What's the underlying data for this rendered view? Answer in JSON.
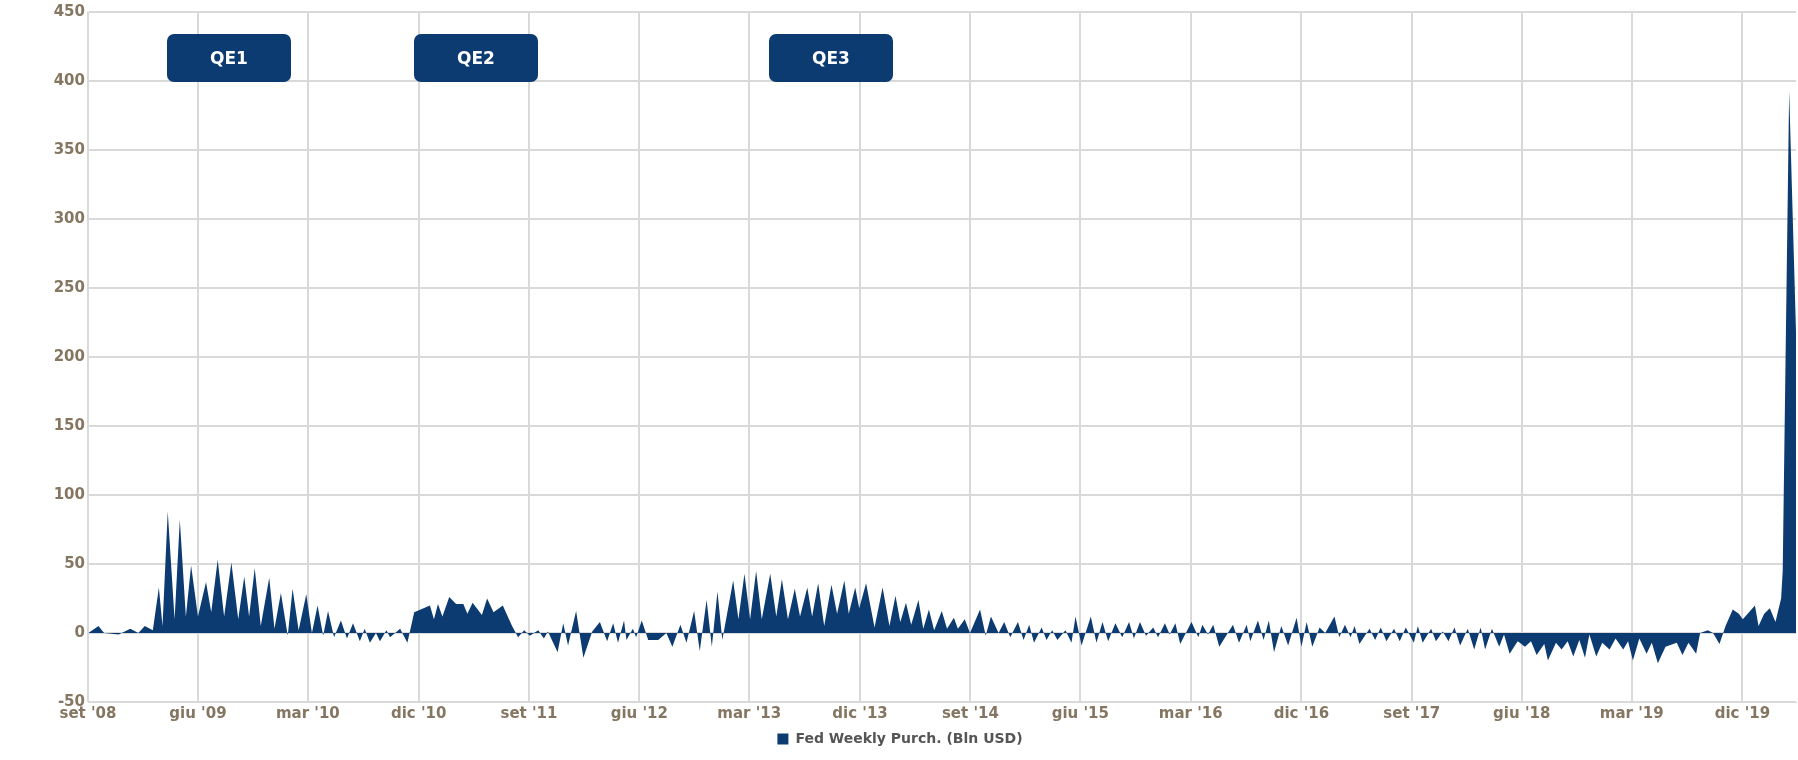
{
  "chart_data": {
    "type": "area",
    "x": [
      "2008-09-02",
      "2008-09-27",
      "2008-10-11",
      "2008-11-16",
      "2008-12-15",
      "2009-01-04",
      "2009-01-20",
      "2009-02-09",
      "2009-02-24",
      "2009-03-05",
      "2009-03-18",
      "2009-04-04",
      "2009-04-17",
      "2009-05-02",
      "2009-05-15",
      "2009-06-01",
      "2009-06-21",
      "2009-07-04",
      "2009-07-20",
      "2009-08-05",
      "2009-08-23",
      "2009-09-09",
      "2009-09-24",
      "2009-10-06",
      "2009-10-20",
      "2009-11-04",
      "2009-11-25",
      "2009-12-08",
      "2009-12-24",
      "2010-01-10",
      "2010-01-22",
      "2010-02-06",
      "2010-02-25",
      "2010-03-11",
      "2010-03-25",
      "2010-04-08",
      "2010-04-20",
      "2010-05-05",
      "2010-05-22",
      "2010-06-06",
      "2010-06-21",
      "2010-07-08",
      "2010-07-20",
      "2010-08-02",
      "2010-08-17",
      "2010-08-27",
      "2010-09-12",
      "2010-09-21",
      "2010-10-16",
      "2010-11-03",
      "2010-11-20",
      "2010-12-29",
      "2011-01-08",
      "2011-01-18",
      "2011-01-29",
      "2011-02-15",
      "2011-03-04",
      "2011-03-22",
      "2011-04-01",
      "2011-04-14",
      "2011-05-07",
      "2011-05-20",
      "2011-06-05",
      "2011-06-28",
      "2011-07-21",
      "2011-08-05",
      "2011-08-20",
      "2011-09-03",
      "2011-09-24",
      "2011-10-08",
      "2011-10-18",
      "2011-11-11",
      "2011-11-25",
      "2011-12-07",
      "2011-12-27",
      "2012-01-14",
      "2012-02-05",
      "2012-02-24",
      "2012-03-13",
      "2012-03-28",
      "2012-04-09",
      "2012-04-24",
      "2012-04-30",
      "2012-05-16",
      "2012-05-24",
      "2012-06-07",
      "2012-06-23",
      "2012-07-18",
      "2012-08-07",
      "2012-08-22",
      "2012-09-11",
      "2012-09-26",
      "2012-10-15",
      "2012-10-29",
      "2012-11-15",
      "2012-11-28",
      "2012-12-12",
      "2012-12-24",
      "2013-01-20",
      "2013-02-02",
      "2013-02-17",
      "2013-03-03",
      "2013-03-18",
      "2013-04-01",
      "2013-04-22",
      "2013-05-07",
      "2013-05-21",
      "2013-06-05",
      "2013-06-22",
      "2013-07-05",
      "2013-07-23",
      "2013-08-04",
      "2013-08-19",
      "2013-09-03",
      "2013-09-21",
      "2013-10-05",
      "2013-10-23",
      "2013-11-03",
      "2013-11-19",
      "2013-11-29",
      "2013-12-16",
      "2014-01-06",
      "2014-01-26",
      "2014-02-12",
      "2014-02-27",
      "2014-03-11",
      "2014-03-25",
      "2014-04-07",
      "2014-04-25",
      "2014-05-07",
      "2014-05-21",
      "2014-06-03",
      "2014-06-22",
      "2014-07-05",
      "2014-07-22",
      "2014-08-01",
      "2014-08-18",
      "2014-08-31",
      "2014-09-25",
      "2014-10-09",
      "2014-10-22",
      "2014-11-10",
      "2014-11-24",
      "2014-12-09",
      "2014-12-28",
      "2015-01-11",
      "2015-01-25",
      "2015-02-06",
      "2015-02-25",
      "2015-03-09",
      "2015-03-23",
      "2015-04-05",
      "2015-04-25",
      "2015-05-10",
      "2015-05-20",
      "2015-06-04",
      "2015-06-27",
      "2015-07-11",
      "2015-07-26",
      "2015-08-09",
      "2015-08-27",
      "2015-09-13",
      "2015-09-30",
      "2015-10-12",
      "2015-10-27",
      "2015-11-11",
      "2015-11-29",
      "2015-12-11",
      "2015-12-28",
      "2016-01-09",
      "2016-01-23",
      "2016-02-04",
      "2016-03-03",
      "2016-03-20",
      "2016-03-30",
      "2016-04-13",
      "2016-04-26",
      "2016-05-11",
      "2016-06-14",
      "2016-06-29",
      "2016-07-18",
      "2016-07-27",
      "2016-08-15",
      "2016-08-29",
      "2016-09-11",
      "2016-09-24",
      "2016-10-12",
      "2016-10-29",
      "2016-11-19",
      "2016-12-01",
      "2016-12-14",
      "2016-12-28",
      "2017-01-15",
      "2017-01-29",
      "2017-02-21",
      "2017-03-05",
      "2017-03-19",
      "2017-04-02",
      "2017-04-12",
      "2017-04-24",
      "2017-05-19",
      "2017-06-02",
      "2017-06-16",
      "2017-06-30",
      "2017-07-19",
      "2017-08-02",
      "2017-08-17",
      "2017-09-06",
      "2017-09-16",
      "2017-09-28",
      "2017-10-19",
      "2017-10-31",
      "2017-11-17",
      "2017-12-01",
      "2017-12-16",
      "2017-12-30",
      "2018-01-18",
      "2018-02-03",
      "2018-02-19",
      "2018-03-02",
      "2018-03-19",
      "2018-04-06",
      "2018-04-18",
      "2018-05-02",
      "2018-05-22",
      "2018-06-09",
      "2018-06-24",
      "2018-07-08",
      "2018-07-27",
      "2018-08-05",
      "2018-08-25",
      "2018-09-08",
      "2018-09-23",
      "2018-10-07",
      "2018-10-22",
      "2018-11-05",
      "2018-11-16",
      "2018-12-03",
      "2018-12-18",
      "2019-01-05",
      "2019-01-20",
      "2019-02-08",
      "2019-02-20",
      "2019-03-04",
      "2019-03-20",
      "2019-04-07",
      "2019-04-20",
      "2019-05-05",
      "2019-05-24",
      "2019-06-21",
      "2019-07-05",
      "2019-07-20",
      "2019-08-08",
      "2019-08-18",
      "2019-09-06",
      "2019-09-19",
      "2019-10-05",
      "2019-10-20",
      "2019-11-07",
      "2019-11-22",
      "2019-12-02",
      "2020-01-01",
      "2020-01-10",
      "2020-01-24",
      "2020-02-07",
      "2020-02-21",
      "2020-03-06",
      "2020-03-10",
      "2020-03-26",
      "2020-04-12"
    ],
    "series": [
      {
        "name": "Fed Weekly Purch. (Bln USD)",
        "color": "#0c3b72",
        "values": [
          0,
          5,
          0,
          -1,
          3,
          0,
          5,
          2,
          33,
          5,
          88,
          10,
          82,
          12,
          49,
          12,
          37,
          15,
          53,
          12,
          51,
          10,
          41,
          12,
          47,
          5,
          40,
          3,
          29,
          -2,
          32,
          2,
          28,
          0,
          20,
          -2,
          16,
          -3,
          9,
          -4,
          7,
          -6,
          3,
          -7,
          0,
          -6,
          2,
          -3,
          3,
          -7,
          15,
          20,
          10,
          21,
          12,
          26,
          21,
          21,
          14,
          22,
          13,
          25,
          15,
          20,
          5,
          -3,
          2,
          -2,
          2,
          -4,
          1,
          -14,
          7,
          -9,
          16,
          -18,
          1,
          8,
          -6,
          7,
          -7,
          9,
          -5,
          3,
          -3,
          9,
          -5,
          -5,
          0,
          -10,
          6,
          -7,
          16,
          -13,
          24,
          -10,
          30,
          -5,
          38,
          10,
          43,
          10,
          45,
          10,
          43,
          12,
          39,
          10,
          32,
          12,
          33,
          12,
          36,
          5,
          35,
          14,
          38,
          14,
          33,
          18,
          36,
          4,
          33,
          5,
          27,
          8,
          22,
          6,
          24,
          3,
          17,
          2,
          16,
          3,
          11,
          3,
          10,
          0,
          17,
          -2,
          12,
          0,
          8,
          -3,
          8,
          -5,
          6,
          -7,
          4,
          -5,
          2,
          -5,
          2,
          -7,
          12,
          -9,
          12,
          -7,
          8,
          -6,
          7,
          -3,
          8,
          -4,
          8,
          -2,
          4,
          -3,
          7,
          -1,
          7,
          -8,
          8,
          -3,
          6,
          -1,
          6,
          -10,
          6,
          -7,
          6,
          -6,
          9,
          -5,
          9,
          -14,
          5,
          -9,
          11,
          -10,
          8,
          -10,
          4,
          0,
          12,
          -3,
          6,
          -3,
          5,
          -8,
          3,
          -5,
          4,
          -6,
          3,
          -6,
          4,
          -7,
          5,
          -7,
          3,
          -6,
          1,
          -6,
          4,
          -9,
          3,
          -12,
          4,
          -12,
          3,
          -10,
          -1,
          -15,
          -6,
          -10,
          -6,
          -16,
          -8,
          -20,
          -7,
          -12,
          -6,
          -17,
          -5,
          -18,
          -1,
          -17,
          -7,
          -12,
          -4,
          -12,
          -6,
          -20,
          -4,
          -15,
          -7,
          -22,
          -10,
          -7,
          -16,
          -7,
          -15,
          0,
          2,
          0,
          -8,
          5,
          17,
          14,
          10,
          20,
          5,
          14,
          18,
          8,
          25,
          45,
          393,
          218
        ]
      }
    ],
    "xlim": [
      "2008-09-01",
      "2020-04-12"
    ],
    "xticks": [
      {
        "value": "2008-09-01",
        "label": "set '08"
      },
      {
        "value": "2009-06-01",
        "label": "giu '09"
      },
      {
        "value": "2010-03-01",
        "label": "mar '10"
      },
      {
        "value": "2010-12-01",
        "label": "dic '10"
      },
      {
        "value": "2011-09-01",
        "label": "set '11"
      },
      {
        "value": "2012-06-01",
        "label": "giu '12"
      },
      {
        "value": "2013-03-01",
        "label": "mar '13"
      },
      {
        "value": "2013-12-01",
        "label": "dic '13"
      },
      {
        "value": "2014-09-01",
        "label": "set '14"
      },
      {
        "value": "2015-06-01",
        "label": "giu '15"
      },
      {
        "value": "2016-03-01",
        "label": "mar '16"
      },
      {
        "value": "2016-12-01",
        "label": "dic '16"
      },
      {
        "value": "2017-09-01",
        "label": "set '17"
      },
      {
        "value": "2018-06-01",
        "label": "giu '18"
      },
      {
        "value": "2019-03-01",
        "label": "mar '19"
      },
      {
        "value": "2019-12-01",
        "label": "dic '19"
      }
    ],
    "ylim": [
      -50,
      450
    ],
    "yticks": [
      -50,
      0,
      50,
      100,
      150,
      200,
      250,
      300,
      350,
      400,
      450
    ],
    "grid": true,
    "legend": "bottom",
    "annotations": [
      "QE1",
      "QE2",
      "QE3"
    ]
  }
}
